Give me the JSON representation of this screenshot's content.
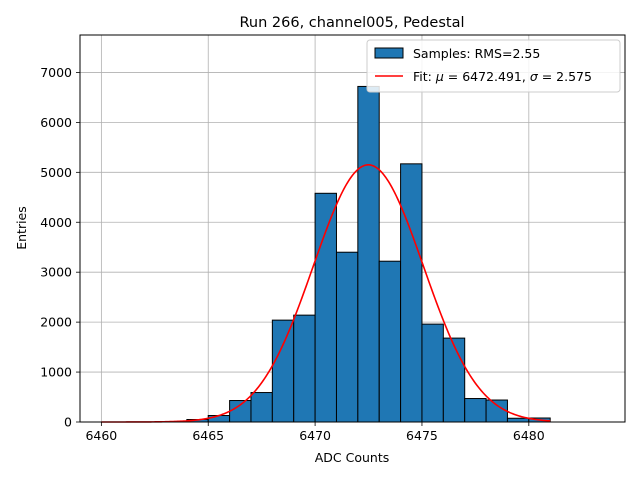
{
  "chart_data": {
    "type": "bar",
    "title": "Run 266, channel005, Pedestal",
    "xlabel": "ADC Counts",
    "ylabel": "Entries",
    "xlim": [
      6459,
      6484.5
    ],
    "ylim": [
      0,
      7750
    ],
    "xticks": [
      6460,
      6465,
      6470,
      6475,
      6480
    ],
    "yticks": [
      0,
      1000,
      2000,
      3000,
      4000,
      5000,
      6000,
      7000
    ],
    "grid": true,
    "legend_position": "top-right",
    "histogram": {
      "name": "Samples: RMS=2.55",
      "color": "#1f77b4",
      "edgecolor": "#000000",
      "bin_edges": [
        6463,
        6464,
        6465,
        6466,
        6467,
        6468,
        6469,
        6470,
        6471,
        6472,
        6473,
        6474,
        6475,
        6476,
        6477,
        6478,
        6479,
        6480,
        6481
      ],
      "values": [
        5,
        50,
        130,
        430,
        590,
        2040,
        2140,
        4580,
        3400,
        6720,
        3220,
        5170,
        1960,
        1680,
        470,
        440,
        75,
        80
      ]
    },
    "fit": {
      "name": "Fit: μ = 6472.491, σ = 2.575",
      "label_parts": [
        "Fit: ",
        "μ",
        " = 6472.491, ",
        "σ",
        " = 2.575"
      ],
      "color": "#ff0000",
      "function": "gaussian",
      "mu": 6472.491,
      "sigma": 2.575,
      "amplitude": 5150,
      "x_range": [
        6460,
        6481
      ]
    }
  }
}
